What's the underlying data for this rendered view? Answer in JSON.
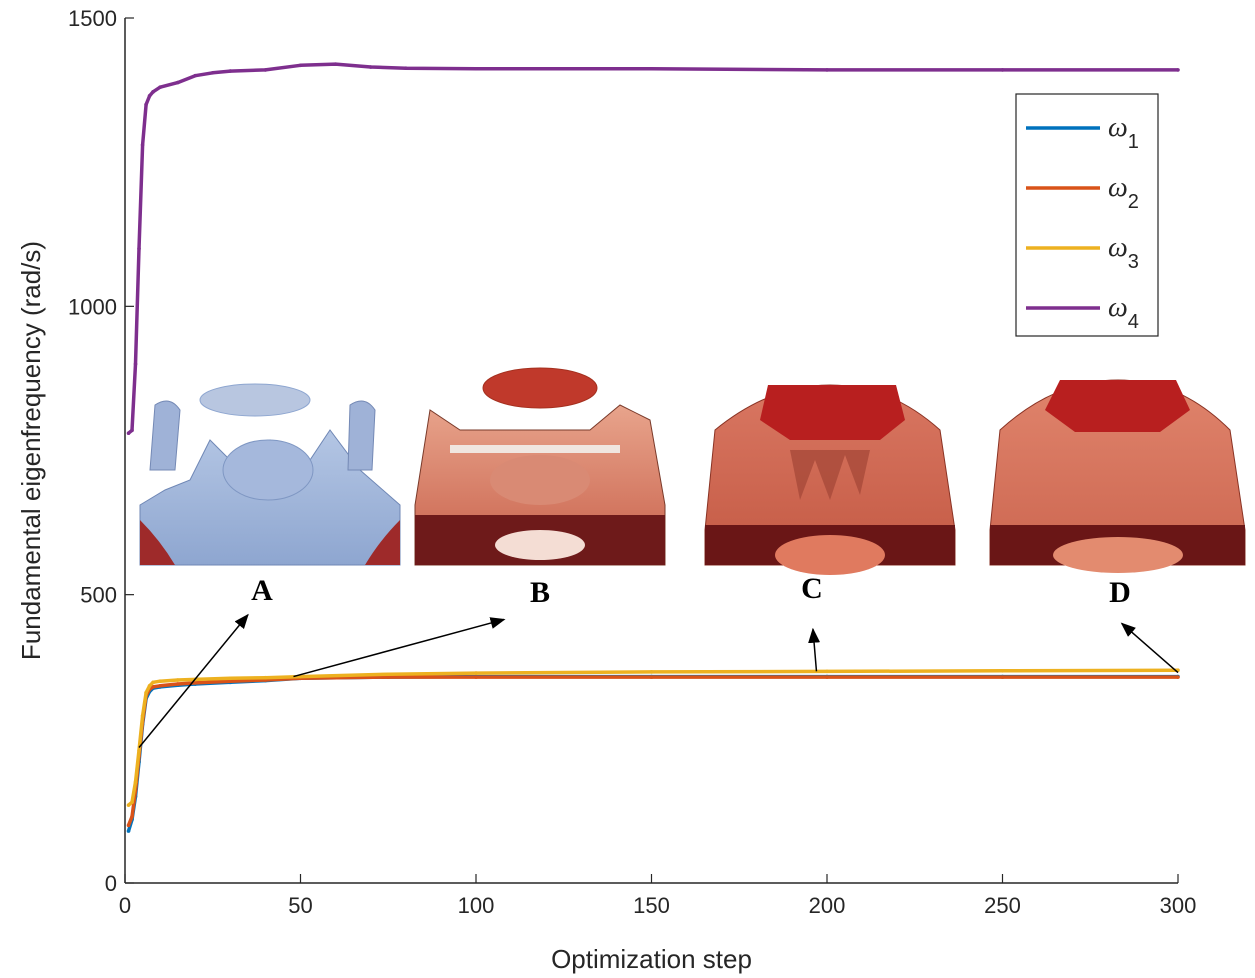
{
  "chart_data": {
    "type": "line",
    "title": "",
    "xlabel": "Optimization step",
    "ylabel": "Fundamental eigenfrequency (rad/s)",
    "xlim": [
      0,
      300
    ],
    "ylim": [
      0,
      1500
    ],
    "x_ticks": [
      "0",
      "50",
      "100",
      "150",
      "200",
      "250",
      "300"
    ],
    "y_ticks": [
      "0",
      "500",
      "1000",
      "1500"
    ],
    "legend_position": "top-right",
    "series": [
      {
        "name": "ω1",
        "symbol": "ω",
        "sub": "1",
        "color": "#0072BD",
        "points": [
          [
            1,
            90
          ],
          [
            2,
            110
          ],
          [
            3,
            150
          ],
          [
            4,
            210
          ],
          [
            5,
            275
          ],
          [
            6,
            320
          ],
          [
            7,
            332
          ],
          [
            8,
            338
          ],
          [
            10,
            340
          ],
          [
            15,
            343
          ],
          [
            20,
            345
          ],
          [
            30,
            348
          ],
          [
            40,
            351
          ],
          [
            50,
            355
          ],
          [
            75,
            357
          ],
          [
            100,
            358
          ],
          [
            150,
            358
          ],
          [
            200,
            358
          ],
          [
            250,
            358
          ],
          [
            300,
            358
          ]
        ]
      },
      {
        "name": "ω2",
        "symbol": "ω",
        "sub": "2",
        "color": "#D95319",
        "points": [
          [
            1,
            100
          ],
          [
            2,
            115
          ],
          [
            3,
            160
          ],
          [
            4,
            220
          ],
          [
            5,
            280
          ],
          [
            6,
            325
          ],
          [
            7,
            336
          ],
          [
            8,
            340
          ],
          [
            10,
            342
          ],
          [
            15,
            345
          ],
          [
            20,
            347
          ],
          [
            30,
            350
          ],
          [
            40,
            352
          ],
          [
            50,
            355
          ],
          [
            75,
            357
          ],
          [
            100,
            357
          ],
          [
            150,
            357
          ],
          [
            200,
            357
          ],
          [
            250,
            357
          ],
          [
            300,
            357
          ]
        ]
      },
      {
        "name": "ω3",
        "symbol": "ω",
        "sub": "3",
        "color": "#EDB120",
        "points": [
          [
            1,
            135
          ],
          [
            2,
            140
          ],
          [
            3,
            175
          ],
          [
            4,
            230
          ],
          [
            5,
            290
          ],
          [
            6,
            330
          ],
          [
            7,
            342
          ],
          [
            8,
            348
          ],
          [
            10,
            350
          ],
          [
            15,
            352
          ],
          [
            20,
            353
          ],
          [
            30,
            355
          ],
          [
            40,
            356
          ],
          [
            50,
            358
          ],
          [
            75,
            362
          ],
          [
            100,
            364
          ],
          [
            150,
            366
          ],
          [
            200,
            367
          ],
          [
            250,
            368
          ],
          [
            300,
            369
          ]
        ]
      },
      {
        "name": "ω4",
        "symbol": "ω",
        "sub": "4",
        "color": "#7E2F8E",
        "points": [
          [
            1,
            780
          ],
          [
            2,
            785
          ],
          [
            3,
            900
          ],
          [
            4,
            1100
          ],
          [
            5,
            1280
          ],
          [
            6,
            1350
          ],
          [
            7,
            1365
          ],
          [
            8,
            1372
          ],
          [
            10,
            1380
          ],
          [
            15,
            1388
          ],
          [
            20,
            1400
          ],
          [
            25,
            1405
          ],
          [
            30,
            1408
          ],
          [
            40,
            1410
          ],
          [
            50,
            1418
          ],
          [
            60,
            1420
          ],
          [
            70,
            1415
          ],
          [
            80,
            1413
          ],
          [
            100,
            1412
          ],
          [
            150,
            1412
          ],
          [
            200,
            1410
          ],
          [
            250,
            1410
          ],
          [
            300,
            1410
          ]
        ]
      }
    ],
    "annotations": [
      {
        "label": "A",
        "from": [
          4,
          235
        ],
        "to": [
          35,
          465
        ]
      },
      {
        "label": "B",
        "from": [
          48,
          358
        ],
        "to": [
          108,
          457
        ]
      },
      {
        "label": "C",
        "from": [
          197,
          367
        ],
        "to": [
          196,
          440
        ]
      },
      {
        "label": "D",
        "from": [
          300,
          365
        ],
        "to": [
          284,
          450
        ]
      }
    ]
  }
}
